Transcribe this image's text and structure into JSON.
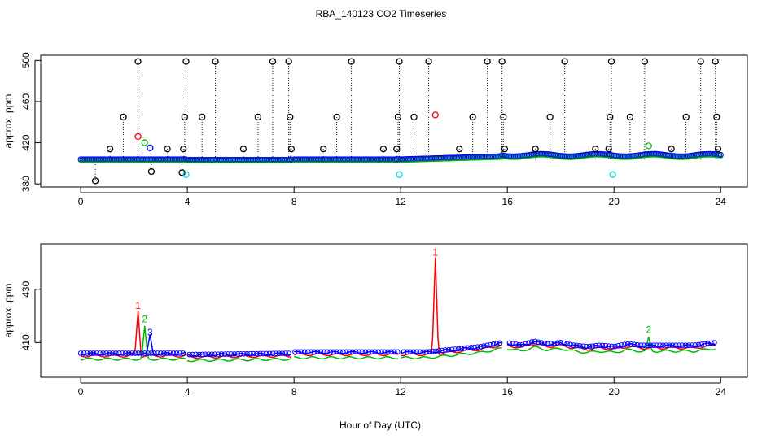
{
  "title": "RBA_140123  CO2 Timeseries",
  "xlabel": "Hour of Day (UTC)",
  "colors": {
    "black": "#000000",
    "red": "#ff0000",
    "green": "#00bb00",
    "blue": "#0000ff",
    "cyan": "#00dddd"
  },
  "chart_data": [
    {
      "type": "scatter",
      "ylabel": "approx. ppm",
      "xlim": [
        -1.5,
        25
      ],
      "ylim": [
        377,
        505
      ],
      "x_ticks": [
        0,
        4,
        8,
        12,
        16,
        20,
        24
      ],
      "x_tick_labels": [
        "0",
        "4",
        "8",
        "12",
        "16",
        "20",
        "24"
      ],
      "y_ticks": [
        380,
        420,
        460,
        500
      ],
      "y_tick_labels": [
        "380",
        "420",
        "460",
        "500"
      ],
      "base_series": {
        "description_color": "blue",
        "segments": [
          {
            "x": [
              0.0,
              3.95
            ],
            "y": 404
          },
          {
            "x": [
              4.0,
              7.9
            ],
            "y": 403.5
          },
          {
            "x": [
              8.0,
              11.9
            ],
            "y": 404
          },
          {
            "x": [
              12.0,
              15.8
            ],
            "y": [
              404,
              407
            ]
          },
          {
            "x": [
              15.8,
              24.0
            ],
            "y": 408
          }
        ]
      },
      "spikes": {
        "black": [
          [
            0.55,
            383
          ],
          [
            1.1,
            414
          ],
          [
            1.6,
            445
          ],
          [
            2.15,
            499
          ],
          [
            2.65,
            392
          ],
          [
            3.25,
            414
          ],
          [
            3.8,
            391
          ],
          [
            3.85,
            414
          ],
          [
            3.9,
            445
          ],
          [
            3.95,
            499
          ],
          [
            4.55,
            445
          ],
          [
            5.05,
            499
          ],
          [
            6.1,
            414
          ],
          [
            6.65,
            445
          ],
          [
            7.2,
            499
          ],
          [
            7.8,
            499
          ],
          [
            7.85,
            445
          ],
          [
            7.9,
            414
          ],
          [
            9.1,
            414
          ],
          [
            9.6,
            445
          ],
          [
            10.15,
            499
          ],
          [
            11.35,
            414
          ],
          [
            11.85,
            414
          ],
          [
            11.9,
            445
          ],
          [
            11.95,
            499
          ],
          [
            12.5,
            445
          ],
          [
            13.05,
            499
          ],
          [
            14.2,
            414
          ],
          [
            14.7,
            445
          ],
          [
            15.25,
            499
          ],
          [
            15.8,
            499
          ],
          [
            15.85,
            445
          ],
          [
            15.9,
            414
          ],
          [
            17.05,
            414
          ],
          [
            17.6,
            445
          ],
          [
            18.15,
            499
          ],
          [
            19.3,
            414
          ],
          [
            19.8,
            414
          ],
          [
            19.85,
            445
          ],
          [
            19.9,
            499
          ],
          [
            20.6,
            445
          ],
          [
            21.15,
            499
          ],
          [
            22.15,
            414
          ],
          [
            22.7,
            445
          ],
          [
            23.25,
            499
          ],
          [
            23.8,
            499
          ],
          [
            23.85,
            445
          ],
          [
            23.9,
            414
          ]
        ],
        "red": [
          [
            2.15,
            426
          ],
          [
            13.3,
            447
          ]
        ],
        "green": [
          [
            2.4,
            420
          ],
          [
            21.3,
            417
          ]
        ],
        "blue": [
          [
            2.6,
            415
          ]
        ],
        "cyan": [
          [
            3.95,
            389
          ],
          [
            11.95,
            389
          ],
          [
            19.95,
            389
          ]
        ]
      }
    },
    {
      "type": "line",
      "ylabel": "approx. ppm",
      "xlim": [
        -1.5,
        25
      ],
      "ylim": [
        397,
        447
      ],
      "x_ticks": [
        0,
        4,
        8,
        12,
        16,
        20,
        24
      ],
      "x_tick_labels": [
        "0",
        "4",
        "8",
        "12",
        "16",
        "20",
        "24"
      ],
      "y_ticks": [
        410,
        430
      ],
      "y_tick_labels": [
        "410",
        "430"
      ],
      "series": [
        {
          "label": "1",
          "color": "red",
          "peaks": [
            [
              2.15,
              422
            ],
            [
              13.3,
              442
            ]
          ]
        },
        {
          "label": "2",
          "color": "green",
          "peaks": [
            [
              2.4,
              417
            ],
            [
              21.3,
              413
            ]
          ]
        },
        {
          "label": "3",
          "color": "blue",
          "peaks": [
            [
              2.6,
              412
            ]
          ]
        }
      ],
      "baseline": [
        [
          0.0,
          405
        ],
        [
          3.95,
          405
        ],
        [
          4.0,
          404.5
        ],
        [
          7.9,
          405
        ],
        [
          8.0,
          405.5
        ],
        [
          11.9,
          405.5
        ],
        [
          12.0,
          405.5
        ],
        [
          13.0,
          405.5
        ],
        [
          14.0,
          406.5
        ],
        [
          15.0,
          407.5
        ],
        [
          15.8,
          409
        ],
        [
          16.0,
          409
        ],
        [
          16.5,
          408
        ],
        [
          17.0,
          409.5
        ],
        [
          17.5,
          408.5
        ],
        [
          18.0,
          409
        ],
        [
          18.5,
          408
        ],
        [
          19.0,
          407.5
        ],
        [
          19.5,
          408
        ],
        [
          20.0,
          407.5
        ],
        [
          20.5,
          408.5
        ],
        [
          21.0,
          408
        ],
        [
          22.0,
          408
        ],
        [
          23.0,
          408
        ],
        [
          23.8,
          409
        ]
      ]
    }
  ]
}
